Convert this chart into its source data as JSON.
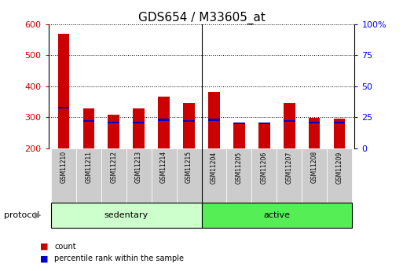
{
  "title": "GDS654 / M33605_at",
  "samples": [
    "GSM11210",
    "GSM11211",
    "GSM11212",
    "GSM11213",
    "GSM11214",
    "GSM11215",
    "GSM11204",
    "GSM11205",
    "GSM11206",
    "GSM11207",
    "GSM11208",
    "GSM11209"
  ],
  "count_values": [
    570,
    330,
    308,
    328,
    367,
    347,
    383,
    277,
    277,
    347,
    298,
    296
  ],
  "percentile_pct": [
    33,
    22,
    21,
    21,
    23,
    22,
    23,
    20,
    20,
    22,
    21,
    21
  ],
  "ylim_left": [
    200,
    600
  ],
  "ylim_right": [
    0,
    100
  ],
  "yticks_left": [
    200,
    300,
    400,
    500,
    600
  ],
  "yticks_right": [
    0,
    25,
    50,
    75,
    100
  ],
  "bar_color_red": "#CC0000",
  "bar_color_blue": "#0000CC",
  "bar_width": 0.45,
  "groups": [
    {
      "label": "sedentary",
      "start": 0,
      "end": 6,
      "color": "#CCFFCC"
    },
    {
      "label": "active",
      "start": 6,
      "end": 12,
      "color": "#55EE55"
    }
  ],
  "group_label_prefix": "protocol",
  "legend_items": [
    {
      "label": "count",
      "color": "#CC0000"
    },
    {
      "label": "percentile rank within the sample",
      "color": "#0000CC"
    }
  ],
  "background_color": "#FFFFFF",
  "tick_label_color_left": "#CC0000",
  "tick_label_color_right": "#0000FF",
  "title_fontsize": 11,
  "tick_fontsize": 8,
  "bar_base": 200,
  "xtick_bg_color": "#CCCCCC",
  "sep_color": "#000000"
}
